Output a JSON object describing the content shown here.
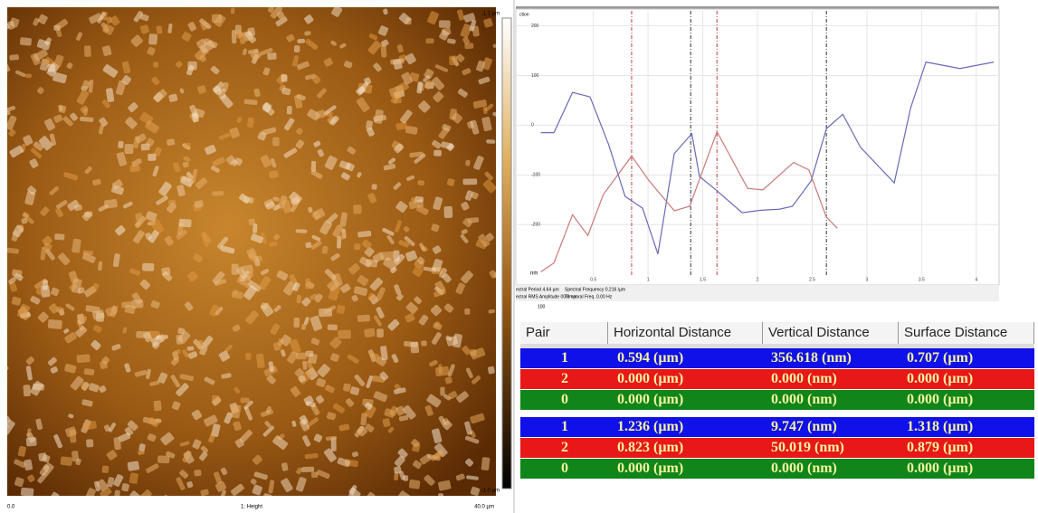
{
  "image": {
    "scale_max": "1.1 µm",
    "scale_min": "-1.0 µm",
    "x_start": "0.0",
    "channel": "1: Height",
    "x_end": "40.0 µm"
  },
  "chart_data": {
    "type": "line",
    "title": "ction",
    "ylabel": "nm",
    "xlim": [
      -0.2,
      4.2
    ],
    "ylim": [
      -305,
      230
    ],
    "xticks": [
      0.5,
      1,
      1.5,
      2,
      2.5,
      3,
      3.5,
      4
    ],
    "yticks": [
      -200,
      -100,
      0,
      100,
      200
    ],
    "grid": true,
    "cursors": [
      {
        "x": 0.85,
        "color": "#c04040"
      },
      {
        "x": 1.39,
        "color": "#303040"
      },
      {
        "x": 1.63,
        "color": "#c04040"
      },
      {
        "x": 2.63,
        "color": "#303040"
      }
    ],
    "series": [
      {
        "color": "#6a6ab8",
        "x": [
          0.02,
          0.14,
          0.31,
          0.47,
          0.64,
          0.79,
          0.95,
          1.09,
          1.24,
          1.4,
          1.47,
          1.62,
          1.86,
          2.03,
          2.2,
          2.32,
          2.49,
          2.63,
          2.78,
          2.94,
          3.25,
          3.4,
          3.54,
          3.85,
          4.16
        ],
        "values": [
          -15,
          -15,
          66,
          57,
          -39,
          -143,
          -167,
          -259,
          -57,
          -17,
          -103,
          -130,
          -176,
          -171,
          -169,
          -163,
          -112,
          -7,
          22,
          -44,
          -116,
          35,
          127,
          114,
          127
        ]
      },
      {
        "color": "#c87a7a",
        "x": [
          0.02,
          0.14,
          0.31,
          0.45,
          0.59,
          0.85,
          1.01,
          1.24,
          1.38,
          1.63,
          1.91,
          2.05,
          2.33,
          2.47,
          2.63,
          2.73
        ],
        "values": [
          -295,
          -277,
          -180,
          -222,
          -140,
          -62,
          -112,
          -172,
          -163,
          -13,
          -127,
          -130,
          -75,
          -90,
          -185,
          -207
        ]
      }
    ]
  },
  "readout": [
    "ectral Period 4.64 µm",
    "Spectral Frequency 0.216 /µm",
    "ectral RMS Amplitude 00.0 nm",
    "Temporal Freq. 0.00 Hz"
  ],
  "lower_panel_label": "100",
  "table": {
    "header": [
      "Pair",
      "Horizontal Distance",
      "Vertical Distance",
      "Surface Distance"
    ],
    "rows": [
      {
        "color": "#1010e8",
        "cells": [
          "1",
          "0.594 (µm)",
          "356.618 (nm)",
          "0.707 (µm)"
        ]
      },
      {
        "color": "#e81818",
        "cells": [
          "2",
          "0.000 (µm)",
          "0.000 (nm)",
          "0.000 (µm)"
        ]
      },
      {
        "color": "#10861a",
        "cells": [
          "0",
          "0.000 (µm)",
          "0.000 (nm)",
          "0.000 (µm)"
        ]
      },
      {
        "color": "#1010e8",
        "cells": [
          "1",
          "1.236 (µm)",
          "9.747 (nm)",
          "1.318 (µm)"
        ]
      },
      {
        "color": "#e81818",
        "cells": [
          "2",
          "0.823 (µm)",
          "50.019 (nm)",
          "0.879 (µm)"
        ]
      },
      {
        "color": "#10861a",
        "cells": [
          "0",
          "0.000 (µm)",
          "0.000 (nm)",
          "0.000 (µm)"
        ]
      }
    ]
  }
}
